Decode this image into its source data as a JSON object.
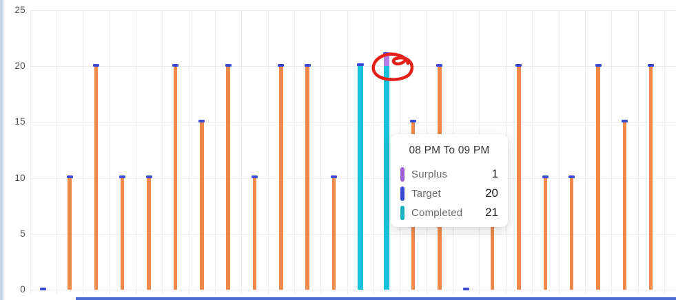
{
  "chart_data": {
    "type": "bar",
    "title": "",
    "xlabel": "",
    "ylabel": "",
    "ylim": [
      0,
      25
    ],
    "yticks": [
      0,
      5,
      10,
      15,
      20,
      25
    ],
    "grid": true,
    "legend_position": "tooltip-only",
    "hovered_category": "08 PM To 09 PM",
    "series_colors": {
      "target_bar_orange": "#f0894a",
      "target_cap_blue": "#3b4bd6",
      "completed_cyan": "#17c3da",
      "surplus_purple": "#b07ee4"
    },
    "bars": [
      {
        "target": 0,
        "completed": null,
        "surplus": null
      },
      {
        "target": 10,
        "completed": null,
        "surplus": null
      },
      {
        "target": 20,
        "completed": null,
        "surplus": null
      },
      {
        "target": 10,
        "completed": null,
        "surplus": null
      },
      {
        "target": 10,
        "completed": null,
        "surplus": null
      },
      {
        "target": 20,
        "completed": null,
        "surplus": null
      },
      {
        "target": 15,
        "completed": null,
        "surplus": null
      },
      {
        "target": 20,
        "completed": null,
        "surplus": null
      },
      {
        "target": 10,
        "completed": null,
        "surplus": null
      },
      {
        "target": 20,
        "completed": null,
        "surplus": null
      },
      {
        "target": 20,
        "completed": null,
        "surplus": null
      },
      {
        "target": 10,
        "completed": null,
        "surplus": null
      },
      {
        "target": 20,
        "completed": 20,
        "surplus": 0
      },
      {
        "target": 20,
        "completed": 21,
        "surplus": 1,
        "hovered": true,
        "annotated": true
      },
      {
        "target": 15,
        "completed": null,
        "surplus": null
      },
      {
        "target": 20,
        "completed": null,
        "surplus": null
      },
      {
        "target": 0,
        "completed": null,
        "surplus": null
      },
      {
        "target": 10,
        "completed": null,
        "surplus": null,
        "note": "top hidden behind tooltip"
      },
      {
        "target": 20,
        "completed": null,
        "surplus": null
      },
      {
        "target": 10,
        "completed": null,
        "surplus": null
      },
      {
        "target": 10,
        "completed": null,
        "surplus": null
      },
      {
        "target": 20,
        "completed": null,
        "surplus": null
      },
      {
        "target": 15,
        "completed": null,
        "surplus": null
      },
      {
        "target": 20,
        "completed": null,
        "surplus": null
      }
    ]
  },
  "y_axis": {
    "tick_labels": [
      "0",
      "5",
      "10",
      "15",
      "20",
      "25"
    ]
  },
  "tooltip": {
    "title": "08 PM To 09 PM",
    "rows": [
      {
        "label": "Surplus",
        "value": "1",
        "color": "#9c5ed2"
      },
      {
        "label": "Target",
        "value": "20",
        "color": "#3b4bd6"
      },
      {
        "label": "Completed",
        "value": "21",
        "color": "#1cb2c6"
      }
    ]
  },
  "annotation": {
    "shape": "hand-drawn-circle",
    "color": "#e4201b"
  },
  "page": {
    "edge_strip_color": "#c7d3e9",
    "scrollbar_color": "#4a6bd3"
  }
}
